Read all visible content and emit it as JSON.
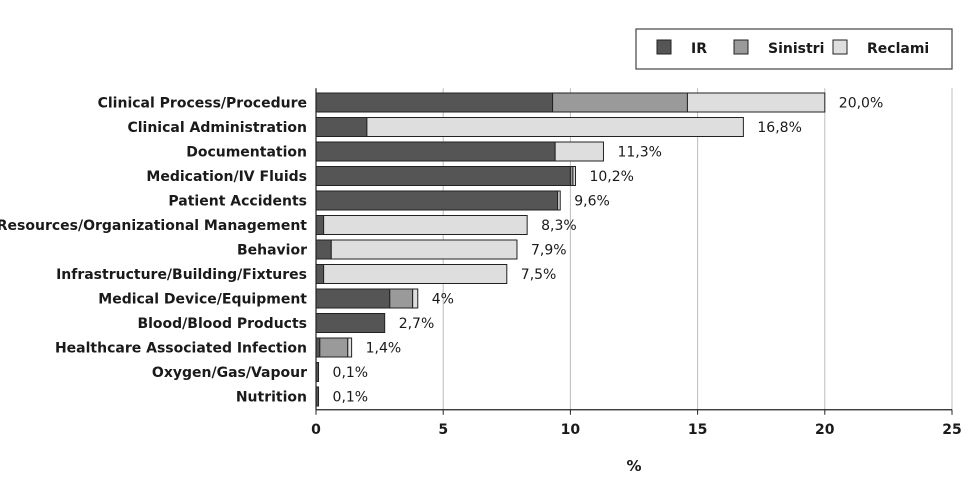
{
  "chart_data": {
    "type": "bar",
    "orientation": "horizontal",
    "stacked": true,
    "categories": [
      "Clinical Process/Procedure",
      "Clinical Administration",
      "Documentation",
      "Medication/IV Fluids",
      "Patient Accidents",
      "Resources/Organizational Management",
      "Behavior",
      "Infrastructure/Building/Fixtures",
      "Medical Device/Equipment",
      "Blood/Blood Products",
      "Healthcare Associated Infection",
      "Oxygen/Gas/Vapour",
      "Nutrition"
    ],
    "series": [
      {
        "name": "IR",
        "color": "#555555",
        "values": [
          9.3,
          2.0,
          9.4,
          10.0,
          9.5,
          0.3,
          0.6,
          0.3,
          2.9,
          2.7,
          0.15,
          0.1,
          0.1
        ]
      },
      {
        "name": "Sinistri",
        "color": "#9a9a9a",
        "values": [
          5.3,
          0.0,
          0.0,
          0.1,
          0.0,
          0.0,
          0.0,
          0.0,
          0.9,
          0.0,
          1.1,
          0.0,
          0.0
        ]
      },
      {
        "name": "Reclami",
        "color": "#dedede",
        "values": [
          5.4,
          14.8,
          1.9,
          0.1,
          0.1,
          8.0,
          7.3,
          7.2,
          0.2,
          0.0,
          0.15,
          0.0,
          0.0
        ]
      }
    ],
    "totals": [
      20.0,
      16.8,
      11.3,
      10.2,
      9.6,
      8.3,
      7.9,
      7.5,
      4.0,
      2.7,
      1.4,
      0.1,
      0.1
    ],
    "value_labels": [
      "20,0%",
      "16,8%",
      "11,3%",
      "10,2%",
      "9,6%",
      "8,3%",
      "7,9%",
      "7,5%",
      "4%",
      "2,7%",
      "1,4%",
      "0,1%",
      "0,1%"
    ],
    "xlabel": "%",
    "ylabel": "",
    "xlim": [
      0,
      25
    ],
    "xticks": [
      0,
      5,
      10,
      15,
      20,
      25
    ],
    "xtick_labels": [
      "0",
      "5",
      "10",
      "15",
      "20",
      "25"
    ],
    "grid": true,
    "legend_position": "top-right"
  }
}
